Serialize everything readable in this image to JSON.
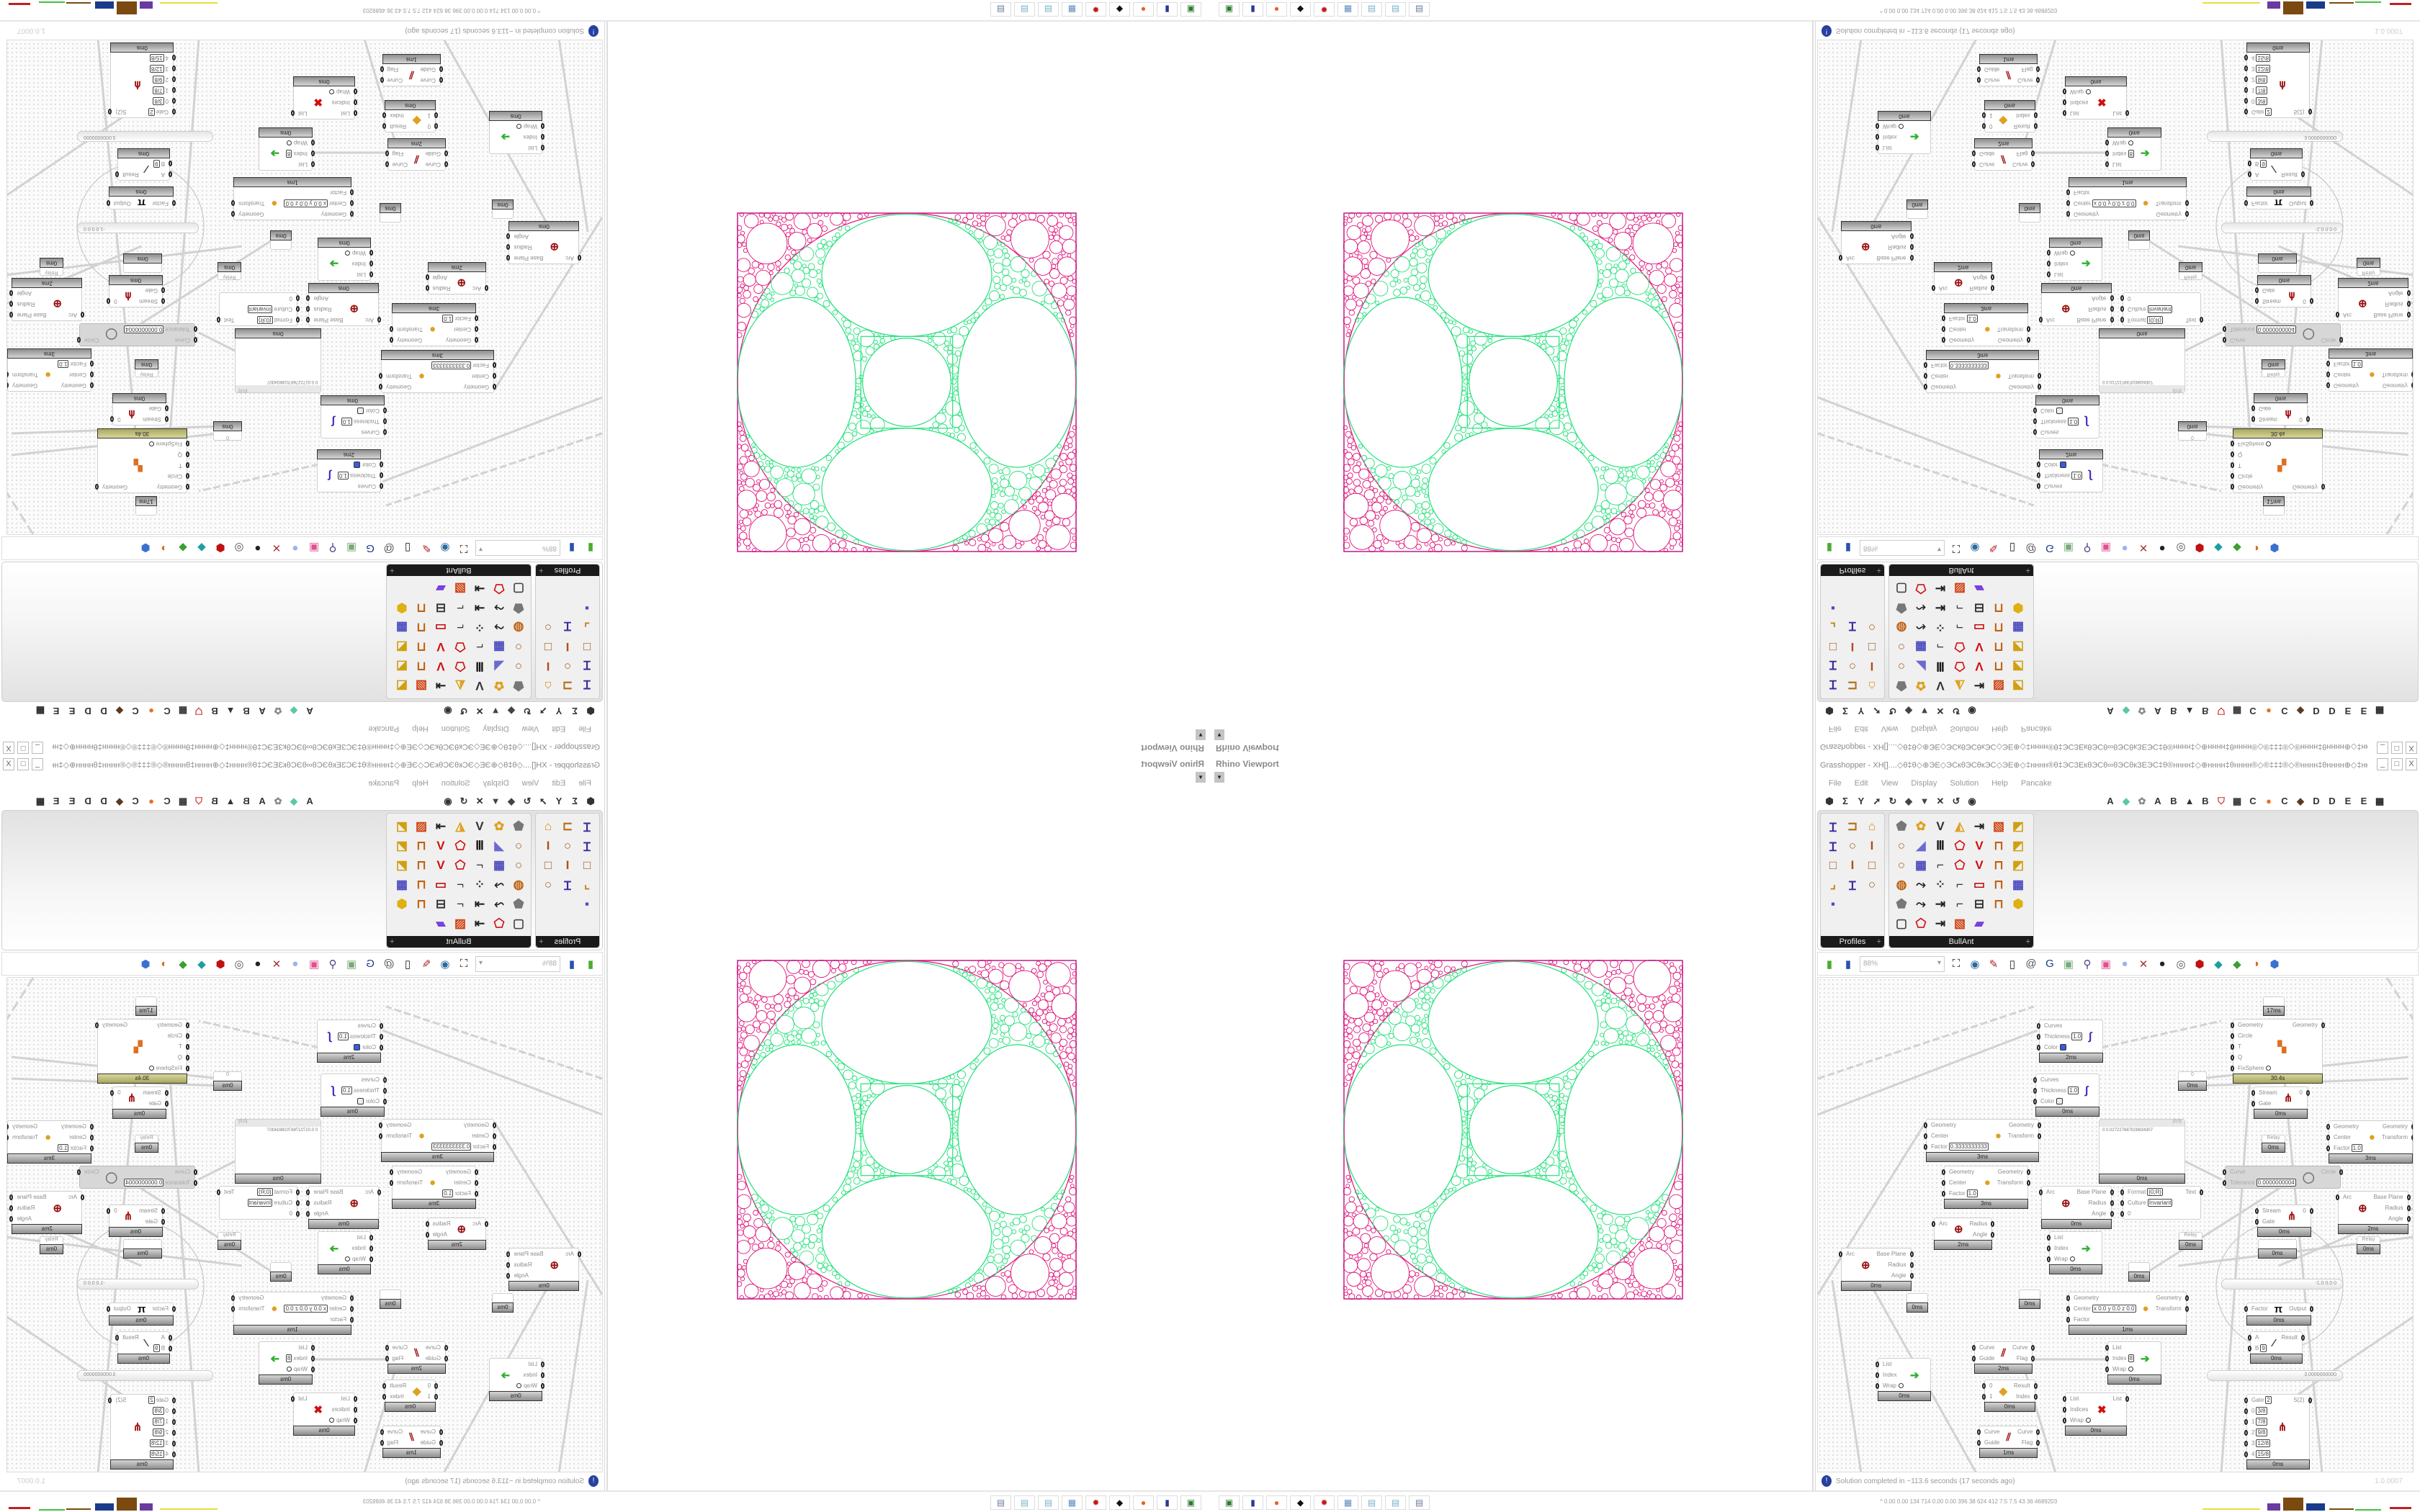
{
  "viewport": {
    "label": "Rhino Viewport",
    "dropdown_icon": "dropdown-arrow-icon"
  },
  "pattern_colors": {
    "inner": "#22e07a",
    "outer": "#e0147a",
    "frame": "#c2188a"
  },
  "window": {
    "title": "Grasshopper - XH[]....◇θ‡θ◇⊕ЭЕ◇ЭСкθЭСθкЭС◇ЭЕ⊕◇‡нннн®θ‡ЭСЗЕкθЭСθ∞θЭСθкЗЕЭС‡θ®нннн‡◇⊕нннн‡θнннн®◇®‡‡‡®◇®нннн‡θнннн⊕◇‡нннн®θ‡ЭСЗЕкθЭСθ∞θ...",
    "minimize": "_",
    "maximize": "□",
    "close": "X"
  },
  "menu": [
    "File",
    "Edit",
    "View",
    "Display",
    "Solution",
    "Help",
    "Pancake"
  ],
  "tabs": {
    "left_icons": [
      "params-icon",
      "maths-icon",
      "sets-icon",
      "vector-icon",
      "curve-icon",
      "surface-icon",
      "mesh-icon",
      "intersect-icon",
      "transform-icon",
      "display-icon"
    ],
    "right": [
      {
        "label": "A"
      },
      {
        "icon": "leaf-tab-icon"
      },
      {
        "icon": "gear-tab-icon"
      },
      {
        "label": "A"
      },
      {
        "label": "B"
      },
      {
        "icon": "mountain-tab-icon"
      },
      {
        "label": "B"
      },
      {
        "icon": "shield-tab-icon"
      },
      {
        "icon": "grid-tab-icon"
      },
      {
        "label": "C"
      },
      {
        "icon": "orange-circle-tab-icon"
      },
      {
        "label": "C"
      },
      {
        "icon": "bird-tab-icon"
      },
      {
        "label": "D"
      },
      {
        "label": "D"
      },
      {
        "label": "E"
      },
      {
        "label": "E"
      },
      {
        "icon": "dotted-grid-tab-icon"
      }
    ]
  },
  "ribbon": {
    "profiles": {
      "label": "Profiles",
      "icons": [
        "i-beam-flange-icon",
        "channel-profile-icon",
        "roof-profile-icon",
        "i-beam-flange-icon",
        "ring-profile-icon",
        "i-beam-icon",
        "box-profile-icon",
        "i-beam-icon",
        "box-profile-icon",
        "angle-profile-icon",
        "i-beam-flange-icon",
        "ring-profile-icon",
        "point-profile-icon"
      ]
    },
    "bullant": {
      "label": "BullAnt",
      "icons": [
        "solid-icon",
        "flower-icon",
        "v-points-icon",
        "triangle-cut-icon",
        "list-arrow-icon",
        "sheet-icon",
        "panel-fold-icon",
        "ring-profile-icon",
        "plane-cut-icon",
        "bars-icon",
        "polygon-red-icon",
        "v-red-icon",
        "lock-icon",
        "panel-fold-icon",
        "ring-profile-icon",
        "cube-grid-icon",
        "polyline-icon",
        "polygon-red-icon",
        "v-red-icon",
        "lock-icon",
        "panel-fold-icon",
        "sphere-net-icon",
        "curve-point-icon",
        "scatter-icon",
        "polyline-icon",
        "frame-red-icon",
        "lock-icon",
        "cube-grid-icon",
        "solid-icon",
        "curve-point-icon",
        "list-arrow-icon",
        "polyline-icon",
        "frame-equal-icon",
        "lock-icon",
        "hexagon-icon",
        "frame-icon",
        "polygon-red-icon",
        "list-arrow-icon",
        "sheet-icon",
        "rainbow-surface-icon"
      ]
    },
    "expand_icon": "+"
  },
  "canvas_toolbar": {
    "zoom": "88%",
    "icons_before": [
      "open-file-icon",
      "save-file-icon"
    ],
    "icons_after": [
      "zoom-extents-icon",
      "preview-eye-icon",
      "sketch-icon",
      "bake-icon",
      "email-icon",
      "gha-icon",
      "viewport-icon",
      "search-icon",
      "package-icon",
      "bulb-icon",
      "wires-icon",
      "preview-shaded-icon",
      "wireframe-icon",
      "shaded-red-icon",
      "teal-icon",
      "green-icon",
      "sphere-orange-icon",
      "blue-gem-icon"
    ]
  },
  "canvas": {
    "nodes": [
      {
        "kind": "component",
        "icon": "custom-preview-icon",
        "in": [
          {
            "label": "Curves"
          },
          {
            "label": "Thickness",
            "value": "1.0"
          },
          {
            "label": "Color",
            "swatch": "#3b5bdb"
          }
        ],
        "out": [],
        "time": "2ms"
      },
      {
        "kind": "component",
        "icon": "custom-preview-icon",
        "in": [
          {
            "label": "Curves"
          },
          {
            "label": "Thickness",
            "value": "1.0"
          },
          {
            "label": "Color",
            "swatch": "#eeeeee"
          }
        ],
        "out": [],
        "time": "0ms"
      },
      {
        "kind": "component",
        "icon": "scale-icon",
        "in": [
          {
            "label": "Geometry"
          },
          {
            "label": "Center"
          },
          {
            "label": "Factor",
            "value": "0.3333333333"
          }
        ],
        "out": [
          {
            "label": "Geometry"
          },
          {
            "label": "Transform"
          }
        ],
        "time": "3ms"
      },
      {
        "kind": "component",
        "icon": "scale-icon",
        "in": [
          {
            "label": "Geometry"
          },
          {
            "label": "Center"
          },
          {
            "label": "Factor",
            "value": "1.0"
          }
        ],
        "out": [
          {
            "label": "Geometry"
          },
          {
            "label": "Transform"
          }
        ],
        "time": "3ms"
      },
      {
        "kind": "component",
        "icon": "arc-properties-icon",
        "in": [
          {
            "label": "Arc"
          }
        ],
        "out": [
          {
            "label": "Base Plane"
          },
          {
            "label": "Radius"
          },
          {
            "label": "Angle"
          }
        ],
        "time": "0ms"
      },
      {
        "kind": "panel",
        "path": "{0;0}",
        "index": "0",
        "value": "0.027227687028834307",
        "time": "0ms"
      },
      {
        "kind": "param",
        "label": "0",
        "time": "0ms"
      },
      {
        "kind": "component",
        "icon": "",
        "in": [
          {
            "label": "Format",
            "value": "{0;R}"
          },
          {
            "label": "Culture",
            "value": "Invariant"
          },
          {
            "label": "0"
          }
        ],
        "out": [
          {
            "label": "Text"
          }
        ]
      },
      {
        "kind": "component",
        "icon": "circle-packing-icon",
        "in": [
          {
            "label": "Geometry"
          },
          {
            "label": "Circle"
          },
          {
            "label": "T"
          },
          {
            "label": "Q"
          },
          {
            "label": "FixSphere",
            "toggle": true
          }
        ],
        "out": [
          {
            "label": "Geometry"
          }
        ],
        "time": "30.4s",
        "olive": true
      },
      {
        "kind": "param",
        "label": "",
        "time": "17ms"
      },
      {
        "kind": "component",
        "icon": "stream-gate-icon",
        "in": [
          {
            "label": "Stream"
          },
          {
            "label": "Gate"
          }
        ],
        "out": [
          {
            "label": "0"
          }
        ],
        "time": "0ms"
      },
      {
        "kind": "relay",
        "label": "Relay",
        "time": "0ms"
      },
      {
        "kind": "component",
        "icon": "circle-fit-icon",
        "disabled": true,
        "in": [
          {
            "label": "Curve"
          },
          {
            "label": "Tolerance",
            "value": "0.0000000004"
          }
        ],
        "out": [
          {
            "label": "Circle"
          }
        ]
      },
      {
        "kind": "component",
        "icon": "scale-icon",
        "in": [
          {
            "label": "Geometry"
          },
          {
            "label": "Center"
          },
          {
            "label": "Factor",
            "value": "1.0"
          }
        ],
        "out": [
          {
            "label": "Geometry"
          },
          {
            "label": "Transform"
          }
        ],
        "time": "3ms"
      },
      {
        "kind": "component",
        "icon": "arc-properties-icon",
        "in": [
          {
            "label": "Arc"
          }
        ],
        "out": [
          {
            "label": "Base Plane"
          },
          {
            "label": "Radius"
          },
          {
            "label": "Angle"
          }
        ],
        "time": "2ms"
      },
      {
        "kind": "component",
        "icon": "stream-gate-icon",
        "in": [
          {
            "label": "Stream"
          },
          {
            "label": "Gate"
          }
        ],
        "out": [
          {
            "label": "0"
          }
        ],
        "time": "0ms"
      },
      {
        "kind": "component",
        "icon": "arc-properties-icon",
        "in": [
          {
            "label": "Arc"
          }
        ],
        "out": [
          {
            "label": "Base Plane"
          },
          {
            "label": "Radius"
          },
          {
            "label": "Angle"
          }
        ],
        "time": "0ms"
      },
      {
        "kind": "component",
        "icon": "arc-properties-icon",
        "in": [
          {
            "label": "Arc"
          }
        ],
        "out": [
          {
            "label": "Radius"
          },
          {
            "label": "Angle"
          }
        ],
        "time": "2ms"
      },
      {
        "kind": "param",
        "label": "",
        "time": "0ms"
      },
      {
        "kind": "component",
        "icon": "list-item-icon",
        "in": [
          {
            "label": "List"
          },
          {
            "label": "Index"
          },
          {
            "label": "Wrap",
            "toggle": true
          }
        ],
        "out": [],
        "time": "0ms"
      },
      {
        "kind": "param",
        "label": "",
        "time": "0ms"
      },
      {
        "kind": "param",
        "label": "",
        "time": "0ms"
      },
      {
        "kind": "component",
        "icon": "scale-icon",
        "in": [
          {
            "label": "Geometry"
          },
          {
            "label": "Center",
            "value": "x 0.0 y 0.0 z 0.0"
          },
          {
            "label": "Factor"
          }
        ],
        "out": [
          {
            "label": "Geometry"
          },
          {
            "label": "Transform"
          }
        ],
        "time": "1ms"
      },
      {
        "kind": "relay",
        "label": "Relay",
        "time": "0ms"
      },
      {
        "kind": "relay",
        "label": "Relay",
        "time": "0ms"
      },
      {
        "kind": "param",
        "label": "",
        "time": "0ms"
      },
      {
        "kind": "slider",
        "text": "-1.0  0.0  0"
      },
      {
        "kind": "component",
        "icon": "pi-icon",
        "in": [
          {
            "label": "Factor"
          }
        ],
        "out": [
          {
            "label": "Output"
          }
        ],
        "time": "0ms"
      },
      {
        "kind": "component",
        "icon": "division-icon",
        "in": [
          {
            "label": "A"
          },
          {
            "label": "B",
            "value": "9"
          }
        ],
        "out": [
          {
            "label": "Result"
          }
        ],
        "time": "0ms"
      },
      {
        "kind": "slider",
        "text": "3.0000000000"
      },
      {
        "kind": "component",
        "icon": "stream-filter-icon",
        "in": [
          {
            "label": "Gate",
            "value": "2"
          },
          {
            "label": "0",
            "value": "3/8"
          },
          {
            "label": "1",
            "value": "7/8"
          },
          {
            "label": "2",
            "value": "9/8"
          },
          {
            "label": "3",
            "value": "12/8"
          },
          {
            "label": "4",
            "value": "15/8"
          }
        ],
        "out": [
          {
            "label": "S(2)"
          }
        ],
        "time": "0ms"
      },
      {
        "kind": "component",
        "icon": "flip-curve-icon",
        "in": [
          {
            "label": "Curve"
          },
          {
            "label": "Guide"
          }
        ],
        "out": [
          {
            "label": "Curve"
          },
          {
            "label": "Flag"
          }
        ],
        "time": "2ms"
      },
      {
        "kind": "component",
        "icon": "list-item-icon",
        "in": [
          {
            "label": "List"
          },
          {
            "label": "Index",
            "value": "8"
          },
          {
            "label": "Wrap",
            "toggle": true
          }
        ],
        "out": [],
        "time": "0ms"
      },
      {
        "kind": "component",
        "icon": "list-item-icon",
        "in": [
          {
            "label": "List"
          },
          {
            "label": "Index"
          },
          {
            "label": "Wrap",
            "toggle": true
          }
        ],
        "out": [],
        "time": "0ms"
      },
      {
        "kind": "component",
        "icon": "pick-icon",
        "in": [
          {
            "label": "0"
          },
          {
            "label": "1"
          }
        ],
        "out": [
          {
            "label": "Result"
          },
          {
            "label": "Index"
          }
        ],
        "time": "0ms"
      },
      {
        "kind": "component",
        "icon": "cull-index-icon",
        "in": [
          {
            "label": "List"
          },
          {
            "label": "Indices"
          },
          {
            "label": "Wrap",
            "toggle": true
          }
        ],
        "out": [
          {
            "label": "List"
          }
        ],
        "time": "0ms"
      },
      {
        "kind": "component",
        "icon": "flip-curve-icon",
        "in": [
          {
            "label": "Curve"
          },
          {
            "label": "Guide"
          }
        ],
        "out": [
          {
            "label": "Curve"
          },
          {
            "label": "Flag"
          }
        ],
        "time": "1ms"
      }
    ]
  },
  "status": {
    "icon": "info-icon",
    "message": "Solution completed in ~113.6 seconds (17 seconds ago)",
    "version": "1.0.0007"
  },
  "taskbar": {
    "apps": [
      "terminal-icon",
      "floppy-64-icon",
      "firefox-icon",
      "rhino-icon",
      "settings-red-icon",
      "calculator-icon",
      "notepad-icon",
      "notepad-icon",
      "printer-icon"
    ],
    "stats": "^  0.00 0.00  134  714  0.00 0.00  396   38   624  412   7.5   7.5   43   36  4689203",
    "bar_colors": [
      "#e8e040",
      "#6a3aa0",
      "#7a4a10",
      "#1a3a8a",
      "#7a4a10",
      "#40c040",
      "#c02020"
    ]
  }
}
